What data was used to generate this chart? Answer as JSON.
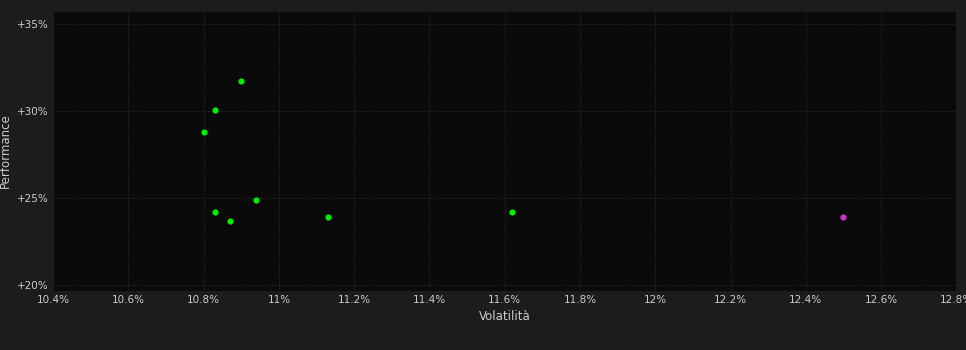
{
  "xlabel": "Volatilità",
  "ylabel": "Performance",
  "background_color": "#1c1c1c",
  "plot_bg_color": "#0a0a0a",
  "grid_color": "#404040",
  "text_color": "#cccccc",
  "xlim": [
    0.104,
    0.128
  ],
  "ylim": [
    0.197,
    0.358
  ],
  "xticks": [
    0.104,
    0.106,
    0.108,
    0.11,
    0.112,
    0.114,
    0.116,
    0.118,
    0.12,
    0.122,
    0.124,
    0.126,
    0.128
  ],
  "yticks": [
    0.2,
    0.25,
    0.3,
    0.35
  ],
  "ytick_labels": [
    "+20%",
    "+25%",
    "+30%",
    "+35%"
  ],
  "xtick_labels": [
    "10.4%",
    "10.6%",
    "10.8%",
    "11%",
    "11.2%",
    "11.4%",
    "11.6%",
    "11.8%",
    "12%",
    "12.2%",
    "12.4%",
    "12.6%",
    "12.8%"
  ],
  "green_points": [
    [
      0.109,
      0.3175
    ],
    [
      0.1083,
      0.301
    ],
    [
      0.108,
      0.288
    ],
    [
      0.1094,
      0.249
    ],
    [
      0.1083,
      0.242
    ],
    [
      0.1087,
      0.237
    ],
    [
      0.1113,
      0.2395
    ],
    [
      0.1162,
      0.242
    ]
  ],
  "magenta_points": [
    [
      0.125,
      0.239
    ]
  ],
  "green_color": "#00ee00",
  "magenta_color": "#cc33cc",
  "point_size": 20
}
